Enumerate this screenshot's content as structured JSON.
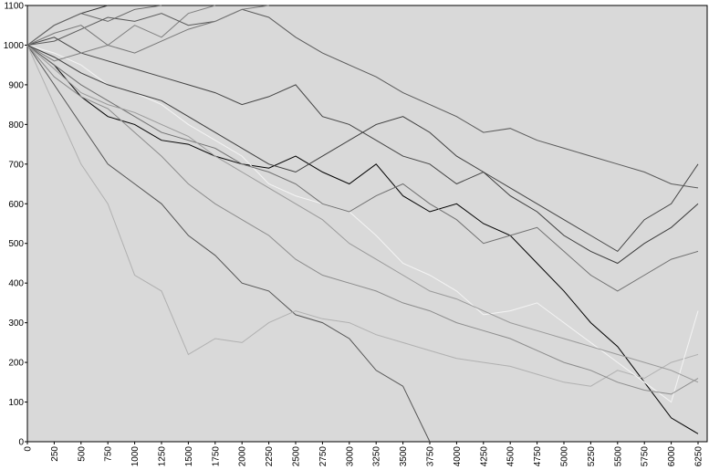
{
  "chart_data": {
    "type": "line",
    "x": [
      0,
      250,
      500,
      750,
      1000,
      1250,
      1500,
      1750,
      2000,
      2250,
      2500,
      2750,
      3000,
      3250,
      3500,
      3750,
      4000,
      4250,
      4500,
      4750,
      5000,
      5250,
      5500,
      5750,
      6000,
      6250
    ],
    "xlim": [
      0,
      6335
    ],
    "ylim": [
      0,
      1100
    ],
    "xticks": [
      0,
      250,
      500,
      750,
      1000,
      1250,
      1500,
      1750,
      2000,
      2250,
      2500,
      2750,
      3000,
      3250,
      3500,
      3750,
      4000,
      4250,
      4500,
      4750,
      5000,
      5250,
      5500,
      5750,
      6000,
      6250
    ],
    "yticks": [
      0,
      100,
      200,
      300,
      400,
      500,
      600,
      700,
      800,
      900,
      1000,
      1100
    ],
    "background": "#d9d9d9",
    "series": [
      {
        "color": "#000000",
        "values": [
          1000,
          950,
          870,
          820,
          800,
          760,
          750,
          720,
          700,
          690,
          720,
          680,
          650,
          700,
          620,
          580,
          600,
          550,
          520,
          450,
          380,
          300,
          240,
          150,
          60,
          20
        ]
      },
      {
        "color": "#333333",
        "values": [
          1000,
          1050,
          1080,
          1100,
          null,
          null,
          null,
          null,
          null,
          null,
          null,
          null,
          null,
          null,
          null,
          null,
          null,
          null,
          null,
          null,
          null,
          null,
          null,
          null,
          null,
          null
        ]
      },
      {
        "color": "#555555",
        "values": [
          1000,
          900,
          800,
          700,
          650,
          600,
          520,
          470,
          400,
          380,
          320,
          300,
          260,
          180,
          140,
          0,
          null,
          null,
          null,
          null,
          null,
          null,
          null,
          null,
          null,
          null
        ]
      },
      {
        "color": "#b0b0b0",
        "values": [
          1000,
          850,
          700,
          600,
          420,
          380,
          220,
          260,
          250,
          300,
          330,
          310,
          300,
          270,
          250,
          230,
          210,
          200,
          190,
          170,
          150,
          140,
          180,
          160,
          200,
          220
        ]
      },
      {
        "color": "#f4f4f4",
        "values": [
          1000,
          980,
          950,
          900,
          880,
          850,
          800,
          760,
          720,
          650,
          620,
          600,
          580,
          520,
          450,
          420,
          380,
          320,
          330,
          350,
          300,
          250,
          200,
          150,
          100,
          330
        ]
      },
      {
        "color": "#444444",
        "values": [
          1000,
          1020,
          980,
          960,
          940,
          920,
          900,
          880,
          850,
          870,
          900,
          820,
          800,
          760,
          720,
          700,
          650,
          680,
          640,
          600,
          560,
          520,
          480,
          560,
          600,
          700
        ]
      },
      {
        "color": "#666666",
        "values": [
          1000,
          1050,
          1080,
          1060,
          1090,
          1100,
          null,
          null,
          null,
          null,
          null,
          null,
          null,
          null,
          null,
          null,
          null,
          null,
          null,
          null,
          null,
          null,
          null,
          null,
          null,
          null
        ]
      },
      {
        "color": "#808080",
        "values": [
          1000,
          960,
          980,
          1000,
          1050,
          1020,
          1080,
          1100,
          null,
          null,
          null,
          null,
          null,
          null,
          null,
          null,
          null,
          null,
          null,
          null,
          null,
          null,
          null,
          null,
          null,
          null
        ]
      },
      {
        "color": "#707070",
        "values": [
          1000,
          950,
          900,
          860,
          820,
          780,
          760,
          740,
          700,
          680,
          650,
          600,
          580,
          620,
          650,
          600,
          560,
          500,
          520,
          540,
          480,
          420,
          380,
          420,
          460,
          480
        ]
      },
      {
        "color": "#8c8c8c",
        "values": [
          1000,
          920,
          870,
          840,
          780,
          720,
          650,
          600,
          560,
          520,
          460,
          420,
          400,
          380,
          350,
          330,
          300,
          280,
          260,
          230,
          200,
          180,
          150,
          130,
          120,
          160
        ]
      },
      {
        "color": "#5a5a5a",
        "values": [
          1000,
          1010,
          1040,
          1070,
          1060,
          1080,
          1050,
          1060,
          1090,
          1070,
          1020,
          980,
          950,
          920,
          880,
          850,
          820,
          780,
          790,
          760,
          740,
          720,
          700,
          680,
          650,
          640
        ]
      },
      {
        "color": "#9a9a9a",
        "values": [
          1000,
          940,
          880,
          850,
          830,
          800,
          770,
          720,
          680,
          640,
          600,
          560,
          500,
          460,
          420,
          380,
          360,
          330,
          300,
          280,
          260,
          240,
          220,
          200,
          180,
          150
        ]
      },
      {
        "color": "#3c3c3c",
        "values": [
          1000,
          970,
          930,
          900,
          880,
          860,
          820,
          780,
          740,
          700,
          680,
          720,
          760,
          800,
          820,
          780,
          720,
          680,
          620,
          580,
          520,
          480,
          450,
          500,
          540,
          600
        ]
      },
      {
        "color": "#777777",
        "values": [
          1000,
          1030,
          1050,
          1000,
          980,
          1010,
          1040,
          1060,
          1090,
          1100,
          null,
          null,
          null,
          null,
          null,
          null,
          null,
          null,
          null,
          null,
          null,
          null,
          null,
          null,
          null,
          null
        ]
      }
    ]
  }
}
